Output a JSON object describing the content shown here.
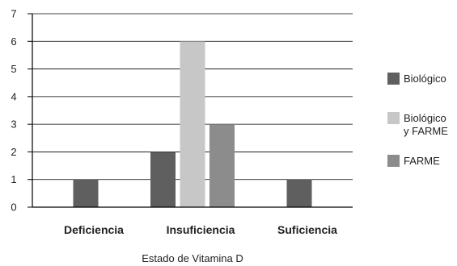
{
  "chart_data": {
    "type": "bar",
    "xlabel": "Estado de Vitamina D",
    "ylabel": "",
    "ylim": [
      0,
      7
    ],
    "yticks": [
      0,
      1,
      2,
      3,
      4,
      5,
      6,
      7
    ],
    "categories": [
      "Deficiencia",
      "Insuficiencia",
      "Suficiencia"
    ],
    "grid": "horizontal",
    "legend_position": "right",
    "series": [
      {
        "name": "Biológico",
        "name_lines": [
          "Biológico"
        ],
        "color": "#5f5f5f",
        "values": [
          1,
          2,
          1
        ]
      },
      {
        "name": "Biológico y FARME",
        "name_lines": [
          "Biológico",
          "y FARME"
        ],
        "color": "#c7c7c7",
        "values": [
          0,
          6,
          0
        ]
      },
      {
        "name": "FARME",
        "name_lines": [
          "FARME"
        ],
        "color": "#8c8c8c",
        "values": [
          0,
          3,
          0
        ]
      }
    ]
  }
}
